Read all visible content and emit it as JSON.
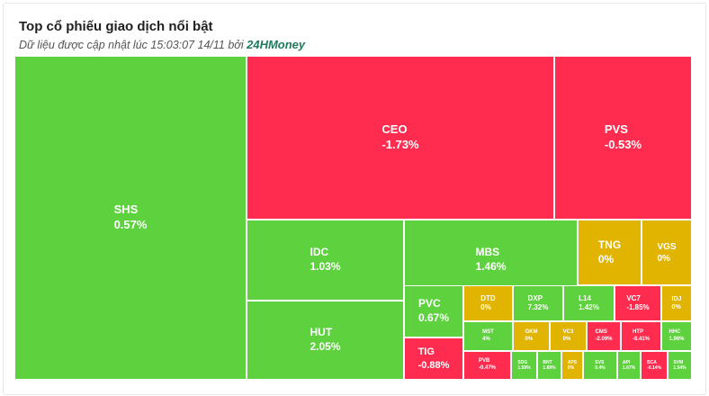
{
  "header": {
    "title": "Top cổ phiếu giao dịch nổi bật",
    "subtitle_prefix": "Dữ liệu được cập nhật lúc 15:03:07 14/11 bởi",
    "brand": "24HMoney"
  },
  "colors": {
    "up": "#5ed13f",
    "down": "#ff2c4f",
    "flat": "#e0b400",
    "border": "#ffffff"
  },
  "chart_data": {
    "type": "treemap",
    "tiles": [
      {
        "symbol": "SHS",
        "change": "0.57%",
        "status": "up"
      },
      {
        "symbol": "CEO",
        "change": "-1.73%",
        "status": "down"
      },
      {
        "symbol": "PVS",
        "change": "-0.53%",
        "status": "down"
      },
      {
        "symbol": "IDC",
        "change": "1.03%",
        "status": "up"
      },
      {
        "symbol": "MBS",
        "change": "1.46%",
        "status": "up"
      },
      {
        "symbol": "TNG",
        "change": "0%",
        "status": "flat"
      },
      {
        "symbol": "VGS",
        "change": "0%",
        "status": "flat"
      },
      {
        "symbol": "HUT",
        "change": "2.05%",
        "status": "up"
      },
      {
        "symbol": "PVC",
        "change": "0.67%",
        "status": "up"
      },
      {
        "symbol": "DTD",
        "change": "0%",
        "status": "flat"
      },
      {
        "symbol": "DXP",
        "change": "7.32%",
        "status": "up"
      },
      {
        "symbol": "L14",
        "change": "1.42%",
        "status": "up"
      },
      {
        "symbol": "VC7",
        "change": "-1.85%",
        "status": "down"
      },
      {
        "symbol": "IDJ",
        "change": "0%",
        "status": "flat"
      },
      {
        "symbol": "MST",
        "change": "4%",
        "status": "up"
      },
      {
        "symbol": "GKM",
        "change": "0%",
        "status": "flat"
      },
      {
        "symbol": "VC3",
        "change": "0%",
        "status": "flat"
      },
      {
        "symbol": "CMS",
        "change": "-2.09%",
        "status": "down"
      },
      {
        "symbol": "HTP",
        "change": "-8.41%",
        "status": "down"
      },
      {
        "symbol": "HHC",
        "change": "1.96%",
        "status": "up"
      },
      {
        "symbol": "TIG",
        "change": "-0.88%",
        "status": "down"
      },
      {
        "symbol": "PVB",
        "change": "-0.47%",
        "status": "down"
      },
      {
        "symbol": "SDG",
        "change": "1.59%",
        "status": "up"
      },
      {
        "symbol": "BNT",
        "change": "1.89%",
        "status": "up"
      },
      {
        "symbol": "APS",
        "change": "0%",
        "status": "flat"
      },
      {
        "symbol": "SVS",
        "change": "0.4%",
        "status": "up"
      },
      {
        "symbol": "API",
        "change": "1.67%",
        "status": "up"
      },
      {
        "symbol": "BCA",
        "change": "-0.14%",
        "status": "down"
      },
      {
        "symbol": "SVM",
        "change": "1.54%",
        "status": "up"
      }
    ]
  }
}
